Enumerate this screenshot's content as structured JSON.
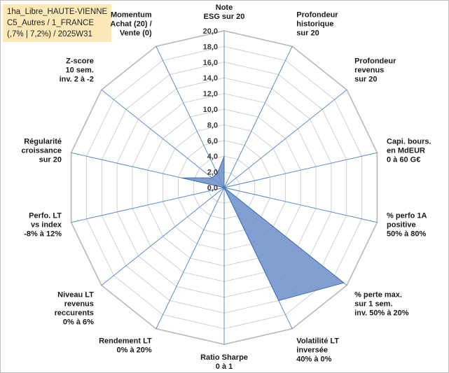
{
  "title_box": {
    "line1": "1ha_Libre_HAUTE-VIENNE",
    "line2": "C5_Autres / 1_FRANCE",
    "line3": "(,7% | 7,2%) / 2025W31"
  },
  "chart_data": {
    "type": "radar",
    "rmax": 20,
    "rticks": [
      "0,0",
      "2,0",
      "4,0",
      "6,0",
      "8,0",
      "10,0",
      "12,0",
      "14,0",
      "16,0",
      "18,0",
      "20,0"
    ],
    "axes": [
      [
        "Note",
        "ESG sur 20"
      ],
      [
        "Profondeur",
        "historique",
        "sur 20"
      ],
      [
        "Profondeur",
        "revenus",
        "sur 20"
      ],
      [
        "Capi. bours.",
        "en MdEUR",
        "0 à 60 G€"
      ],
      [
        "% perfo 1A",
        "positive",
        "50% à 80%"
      ],
      [
        "% perte max.",
        "sur 1 sem.",
        "inv. 50% à 20%"
      ],
      [
        "Volatilité LT",
        "inversée",
        "40% à 0%"
      ],
      [
        "Ratio Sharpe",
        "0 à 1"
      ],
      [
        "Rendement LT",
        "0% à 20%"
      ],
      [
        "Niveau LT",
        "revenus",
        "reccurents",
        "0% à 6%"
      ],
      [
        "Perfo. LT",
        "vs index",
        "-8% à 12%"
      ],
      [
        "Régularité",
        "croissance",
        "sur 20"
      ],
      [
        "Z-score",
        "10 sem.",
        "inv. 2 à -2"
      ],
      [
        "Momentum",
        "Achat (20) /",
        "Vente (0)"
      ]
    ],
    "series": [
      {
        "values": [
          4.0,
          0.0,
          0.0,
          0.0,
          0.0,
          19.5,
          16.0,
          0.0,
          0.0,
          0.0,
          0.0,
          5.5,
          2.0,
          2.0
        ]
      }
    ],
    "colors": {
      "fill": "#6b8fc9",
      "stroke": "#3f6db3",
      "grid": "#d0d0d0",
      "axis_lines": "#4f7fc0"
    },
    "grid": true,
    "legend": "none"
  }
}
